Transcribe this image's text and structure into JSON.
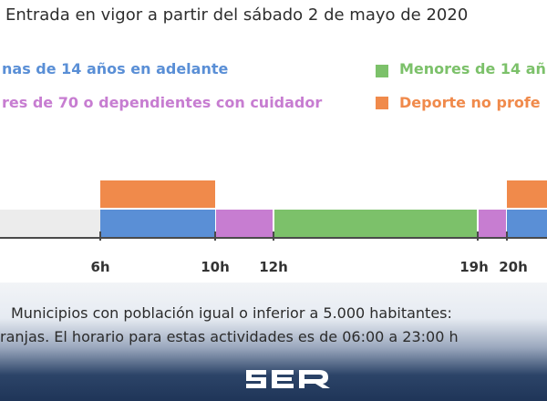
{
  "header": {
    "title": "Entrada en vigor a partir del sábado 2 de mayo de 2020"
  },
  "legend": [
    {
      "label": "nas de 14 años en adelante",
      "color": "#5a8fd6"
    },
    {
      "label": "Menores de 14 añ",
      "color": "#7cc16a"
    },
    {
      "label": "res de 70 o dependientes con cuidador",
      "color": "#c77dd1"
    },
    {
      "label": "Deporte no profe",
      "color": "#f08a4b"
    }
  ],
  "timeline": {
    "ticks": [
      "6h",
      "10h",
      "12h",
      "19h",
      "20h"
    ],
    "segments": {
      "grey_before_6": {
        "color": "#ececec"
      },
      "blue_6_10": {
        "from": "6h",
        "to": "10h",
        "color": "#5a8fd6"
      },
      "orange_6_10": {
        "from": "6h",
        "to": "10h",
        "color": "#f08a4b"
      },
      "purple_10_12": {
        "from": "10h",
        "to": "12h",
        "color": "#c77dd1"
      },
      "green_12_19": {
        "from": "12h",
        "to": "19h",
        "color": "#7cc16a"
      },
      "purple_19_20": {
        "from": "19h",
        "to": "20h",
        "color": "#c77dd1"
      },
      "blue_20_plus": {
        "from": "20h",
        "color": "#5a8fd6"
      },
      "orange_20_plus": {
        "from": "20h",
        "color": "#f08a4b"
      }
    }
  },
  "notes": {
    "line1": "Municipios con población igual o inferior a 5.000 habitantes:",
    "line2": "ranjas. El horario para estas actividades es de 06:00 a 23:00 h"
  },
  "brand": {
    "logo_text": "SER"
  }
}
